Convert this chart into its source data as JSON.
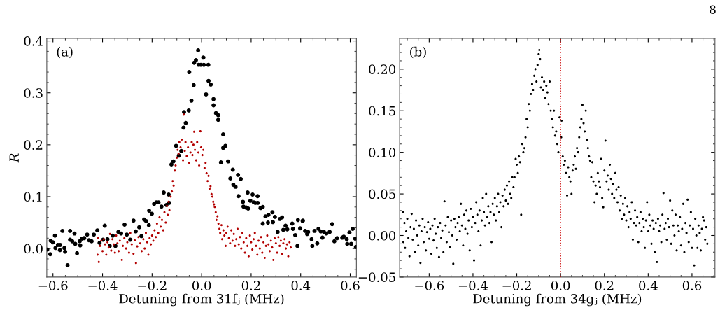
{
  "chart_data": [
    {
      "type": "scatter",
      "title": "(a)",
      "xlabel": "Detuning from 31fⱼ (MHz)",
      "ylabel": "R",
      "marker": "circle",
      "grid": false,
      "xlim": [
        -0.625,
        0.625
      ],
      "ylim": [
        -0.055,
        0.405
      ],
      "xticks": [
        {
          "value": -0.6,
          "label": "−0.6"
        },
        {
          "value": -0.4,
          "label": "−0.4"
        },
        {
          "value": -0.2,
          "label": "−0.2"
        },
        {
          "value": 0.0,
          "label": "0.0"
        },
        0.2,
        0.4,
        0.6
      ],
      "yticks": [
        {
          "value": 0.0,
          "label": "0.0"
        },
        0.1,
        0.2,
        0.3,
        0.4
      ],
      "annotations": [
        "8"
      ],
      "series": [
        {
          "color": "#000000",
          "x": [
            -0.623,
            -0.611,
            -0.609,
            -0.6,
            -0.592,
            -0.59,
            -0.58,
            -0.572,
            -0.571,
            -0.562,
            -0.554,
            -0.551,
            -0.541,
            -0.531,
            -0.531,
            -0.522,
            -0.513,
            -0.51,
            -0.503,
            -0.492,
            -0.49,
            -0.483,
            -0.474,
            -0.462,
            -0.455,
            -0.444,
            -0.435,
            -0.421,
            -0.412,
            -0.398,
            -0.391,
            -0.38,
            -0.371,
            -0.359,
            -0.348,
            -0.336,
            -0.325,
            -0.311,
            -0.302,
            -0.288,
            -0.275,
            -0.266,
            -0.252,
            -0.243,
            -0.232,
            -0.224,
            -0.213,
            -0.212,
            -0.201,
            -0.192,
            -0.183,
            -0.174,
            -0.162,
            -0.153,
            -0.142,
            -0.133,
            -0.131,
            -0.122,
            -0.114,
            -0.103,
            -0.092,
            -0.082,
            -0.073,
            -0.064,
            -0.071,
            -0.052,
            -0.041,
            -0.05,
            -0.032,
            -0.03,
            -0.023,
            -0.014,
            -0.012,
            -0.003,
            0.007,
            0.009,
            0.018,
            0.027,
            0.028,
            0.037,
            0.048,
            0.048,
            0.058,
            0.067,
            0.067,
            0.078,
            0.087,
            0.087,
            0.096,
            0.107,
            0.116,
            0.126,
            0.128,
            0.137,
            0.147,
            0.149,
            0.158,
            0.167,
            0.169,
            0.18,
            0.186,
            0.188,
            0.197,
            0.206,
            0.211,
            0.217,
            0.226,
            0.227,
            0.238,
            0.247,
            0.247,
            0.258,
            0.268,
            0.27,
            0.286,
            0.288,
            0.296,
            0.307,
            0.316,
            0.325,
            0.33,
            0.339,
            0.346,
            0.366,
            0.369,
            0.378,
            0.387,
            0.389,
            0.398,
            0.408,
            0.409,
            0.418,
            0.426,
            0.43,
            0.444,
            0.447,
            0.456,
            0.467,
            0.472,
            0.481,
            0.488,
            0.494,
            0.504,
            0.517,
            0.527,
            0.536,
            0.547,
            0.568,
            0.574,
            0.586,
            0.588,
            0.597,
            0.604,
            0.61,
            0.62,
            0.623
          ],
          "values": [
            -0.002,
            -0.011,
            0.015,
            0.012,
            0.025,
            0.001,
            0.007,
            -0.003,
            0.007,
            0.034,
            0.001,
            -0.006,
            -0.032,
            0.034,
            0.017,
            0.014,
            0.029,
            0.009,
            -0.009,
            0.014,
            0.006,
            0.019,
            0.02,
            0.027,
            0.016,
            0.014,
            0.027,
            0.035,
            0.011,
            0.017,
            0.044,
            0.018,
            0.005,
            0.025,
            0.005,
            0.032,
            0.029,
            0.046,
            0.027,
            0.017,
            0.054,
            0.033,
            0.041,
            0.024,
            0.056,
            0.053,
            0.045,
            0.073,
            0.067,
            0.086,
            0.089,
            0.089,
            0.081,
            0.108,
            0.084,
            0.104,
            0.088,
            0.162,
            0.168,
            0.198,
            0.179,
            0.188,
            0.233,
            0.242,
            0.263,
            0.266,
            0.285,
            0.34,
            0.315,
            0.358,
            0.363,
            0.382,
            0.354,
            0.354,
            0.368,
            0.354,
            0.297,
            0.354,
            0.323,
            0.316,
            0.288,
            0.276,
            0.261,
            0.257,
            0.248,
            0.166,
            0.22,
            0.194,
            0.198,
            0.168,
            0.135,
            0.152,
            0.123,
            0.119,
            0.142,
            0.101,
            0.134,
            0.09,
            0.081,
            0.079,
            0.108,
            0.077,
            0.092,
            0.104,
            0.089,
            0.088,
            0.101,
            0.088,
            0.078,
            0.08,
            0.048,
            0.062,
            0.05,
            0.065,
            0.07,
            0.051,
            0.061,
            0.032,
            0.057,
            0.06,
            0.036,
            0.044,
            0.037,
            0.048,
            0.038,
            0.026,
            0.005,
            0.055,
            0.039,
            0.053,
            0.054,
            0.034,
            0.028,
            0.032,
            0.018,
            0.005,
            0.034,
            0.01,
            0.038,
            0.033,
            0.021,
            0.032,
            0.029,
            0.032,
            0.047,
            0.014,
            0.02,
            0.021,
            0.023,
            0.018,
            0.009,
            0.031,
            0.009,
            0.038,
            0.019,
            0.003
          ]
        },
        {
          "color": "#b30000",
          "x": [
            -0.42,
            -0.418,
            -0.415,
            -0.41,
            -0.405,
            -0.4,
            -0.395,
            -0.39,
            -0.385,
            -0.38,
            -0.375,
            -0.37,
            -0.365,
            -0.36,
            -0.355,
            -0.35,
            -0.345,
            -0.34,
            -0.335,
            -0.33,
            -0.322,
            -0.318,
            -0.312,
            -0.305,
            -0.3,
            -0.293,
            -0.288,
            -0.282,
            -0.275,
            -0.27,
            -0.265,
            -0.26,
            -0.255,
            -0.248,
            -0.242,
            -0.235,
            -0.23,
            -0.225,
            -0.22,
            -0.215,
            -0.21,
            -0.205,
            -0.2,
            -0.195,
            -0.19,
            -0.185,
            -0.18,
            -0.175,
            -0.17,
            -0.165,
            -0.16,
            -0.155,
            -0.15,
            -0.145,
            -0.14,
            -0.137,
            -0.133,
            -0.13,
            -0.125,
            -0.12,
            -0.117,
            -0.113,
            -0.108,
            -0.105,
            -0.1,
            -0.097,
            -0.093,
            -0.09,
            -0.085,
            -0.08,
            -0.075,
            -0.072,
            -0.068,
            -0.065,
            -0.06,
            -0.055,
            -0.05,
            -0.045,
            -0.04,
            -0.037,
            -0.033,
            -0.03,
            -0.027,
            -0.022,
            -0.018,
            -0.013,
            -0.01,
            -0.005,
            -0.002,
            0.003,
            0.007,
            0.012,
            0.016,
            0.02,
            0.024,
            0.028,
            0.032,
            0.036,
            0.04,
            0.043,
            0.047,
            0.05,
            0.053,
            0.057,
            0.06,
            0.064,
            0.068,
            0.072,
            0.075,
            0.08,
            0.083,
            0.088,
            0.092,
            0.097,
            0.1,
            0.105,
            0.11,
            0.115,
            0.12,
            0.125,
            0.13,
            0.135,
            0.14,
            0.145,
            0.15,
            0.155,
            0.16,
            0.165,
            0.17,
            0.175,
            0.18,
            0.185,
            0.19,
            0.195,
            0.2,
            0.205,
            0.21,
            0.215,
            0.22,
            0.225,
            0.23,
            0.235,
            0.24,
            0.245,
            0.25,
            0.255,
            0.26,
            0.265,
            0.27,
            0.275,
            0.28,
            0.285,
            0.29,
            0.295,
            0.3,
            0.305,
            0.31,
            0.315,
            0.32,
            0.325,
            0.33,
            0.335,
            0.34,
            0.345,
            0.35,
            0.355,
            0.36
          ],
          "values": [
            -0.012,
            0.02,
            -0.026,
            0.005,
            0.015,
            -0.005,
            0.018,
            0.008,
            -0.012,
            0.012,
            0.002,
            0.028,
            -0.004,
            0.018,
            0.008,
            -0.008,
            0.025,
            0.01,
            -0.005,
            0.015,
            -0.022,
            0.005,
            0.02,
            0.0,
            0.012,
            -0.008,
            0.03,
            0.008,
            -0.01,
            0.016,
            -0.028,
            0.004,
            0.022,
            0.01,
            -0.005,
            0.018,
            0.0,
            0.03,
            0.012,
            -0.012,
            0.02,
            0.008,
            0.025,
            0.015,
            0.035,
            0.022,
            0.048,
            0.03,
            0.06,
            0.042,
            0.055,
            0.035,
            0.07,
            0.05,
            0.082,
            0.065,
            0.09,
            0.074,
            0.1,
            0.11,
            0.13,
            0.121,
            0.15,
            0.16,
            0.175,
            0.19,
            0.183,
            0.205,
            0.195,
            0.21,
            0.17,
            0.258,
            0.188,
            0.205,
            0.178,
            0.195,
            0.165,
            0.185,
            0.205,
            0.18,
            0.2,
            0.225,
            0.19,
            0.17,
            0.205,
            0.185,
            0.16,
            0.226,
            0.195,
            0.18,
            0.19,
            0.155,
            0.165,
            0.145,
            0.13,
            0.14,
            0.115,
            0.12,
            0.105,
            0.1,
            0.09,
            0.085,
            0.08,
            0.07,
            0.055,
            0.062,
            0.048,
            0.038,
            0.03,
            0.045,
            0.018,
            0.035,
            0.025,
            0.005,
            0.03,
            0.042,
            0.02,
            0.01,
            0.035,
            0.015,
            0.028,
            0.005,
            0.018,
            0.038,
            0.008,
            0.022,
            0.0,
            0.03,
            0.012,
            -0.008,
            0.02,
            0.005,
            -0.015,
            0.025,
            0.012,
            -0.002,
            0.018,
            0.03,
            0.005,
            -0.012,
            0.015,
            0.0,
            0.022,
            -0.008,
            0.012,
            -0.018,
            0.005,
            0.025,
            0.008,
            -0.005,
            0.015,
            0.002,
            -0.022,
            0.02,
            0.01,
            -0.008,
            0.022,
            0.005,
            0.015,
            -0.01,
            0.01,
            0.018,
            0.0,
            0.008,
            -0.015,
            0.012,
            0.002
          ]
        }
      ]
    },
    {
      "type": "scatter",
      "title": "(b)",
      "xlabel": "Detuning from 34gⱼ (MHz)",
      "marker": "circle",
      "grid": false,
      "xlim": [
        -0.735,
        0.705
      ],
      "ylim": [
        -0.05,
        0.237
      ],
      "xticks": [
        {
          "value": -0.6,
          "label": "−0.6"
        },
        {
          "value": -0.4,
          "label": "−0.4"
        },
        {
          "value": -0.2,
          "label": "−0.2"
        },
        {
          "value": 0.0,
          "label": "0.0"
        },
        0.2,
        0.4,
        0.6
      ],
      "yticks": [
        {
          "value": -0.05,
          "label": "−0.05"
        },
        {
          "value": 0.0,
          "label": "0.00"
        },
        0.05,
        {
          "value": 0.1,
          "label": "0.10"
        },
        0.15,
        {
          "value": 0.2,
          "label": "0.20"
        }
      ],
      "ref_lines": [
        {
          "axis": "x",
          "value": 0.0,
          "color": "#cc0000",
          "line_style": "dotted"
        }
      ],
      "series": [
        {
          "color": "#000000",
          "x": [
            -0.72,
            -0.718,
            -0.713,
            -0.71,
            -0.705,
            -0.7,
            -0.695,
            -0.69,
            -0.685,
            -0.68,
            -0.675,
            -0.67,
            -0.665,
            -0.66,
            -0.655,
            -0.65,
            -0.645,
            -0.64,
            -0.635,
            -0.63,
            -0.625,
            -0.62,
            -0.615,
            -0.61,
            -0.605,
            -0.6,
            -0.595,
            -0.59,
            -0.585,
            -0.58,
            -0.575,
            -0.57,
            -0.565,
            -0.56,
            -0.555,
            -0.55,
            -0.545,
            -0.54,
            -0.535,
            -0.53,
            -0.525,
            -0.52,
            -0.515,
            -0.51,
            -0.505,
            -0.5,
            -0.495,
            -0.49,
            -0.485,
            -0.48,
            -0.475,
            -0.47,
            -0.465,
            -0.46,
            -0.455,
            -0.45,
            -0.445,
            -0.44,
            -0.435,
            -0.43,
            -0.425,
            -0.42,
            -0.415,
            -0.41,
            -0.405,
            -0.4,
            -0.395,
            -0.39,
            -0.385,
            -0.38,
            -0.375,
            -0.37,
            -0.365,
            -0.36,
            -0.355,
            -0.35,
            -0.345,
            -0.34,
            -0.335,
            -0.33,
            -0.325,
            -0.32,
            -0.315,
            -0.31,
            -0.305,
            -0.3,
            -0.295,
            -0.29,
            -0.285,
            -0.28,
            -0.275,
            -0.27,
            -0.265,
            -0.26,
            -0.255,
            -0.25,
            -0.245,
            -0.24,
            -0.235,
            -0.23,
            -0.225,
            -0.22,
            -0.215,
            -0.21,
            -0.205,
            -0.2,
            -0.195,
            -0.19,
            -0.185,
            -0.18,
            -0.175,
            -0.17,
            -0.165,
            -0.16,
            -0.155,
            -0.15,
            -0.145,
            -0.14,
            -0.135,
            -0.13,
            -0.125,
            -0.12,
            -0.115,
            -0.11,
            -0.105,
            -0.1,
            -0.097,
            -0.093,
            -0.09,
            -0.085,
            -0.08,
            -0.075,
            -0.07,
            -0.065,
            -0.06,
            -0.055,
            -0.05,
            -0.045,
            -0.04,
            -0.035,
            -0.03,
            -0.025,
            -0.02,
            -0.015,
            -0.01,
            -0.005,
            0.003,
            0.005,
            0.01,
            0.015,
            0.02,
            0.025,
            0.03,
            0.035,
            0.04,
            0.045,
            0.05,
            0.055,
            0.06,
            0.065,
            0.07,
            0.075,
            0.08,
            0.085,
            0.09,
            0.095,
            0.1,
            0.105,
            0.11,
            0.115,
            0.12,
            0.125,
            0.13,
            0.135,
            0.14,
            0.145,
            0.15,
            0.155,
            0.16,
            0.165,
            0.17,
            0.175,
            0.18,
            0.185,
            0.19,
            0.195,
            0.2,
            0.205,
            0.21,
            0.215,
            0.22,
            0.225,
            0.23,
            0.235,
            0.24,
            0.245,
            0.25,
            0.255,
            0.26,
            0.265,
            0.27,
            0.275,
            0.28,
            0.285,
            0.29,
            0.295,
            0.3,
            0.305,
            0.31,
            0.315,
            0.32,
            0.325,
            0.33,
            0.335,
            0.34,
            0.345,
            0.35,
            0.355,
            0.36,
            0.365,
            0.37,
            0.375,
            0.38,
            0.385,
            0.39,
            0.395,
            0.4,
            0.405,
            0.41,
            0.415,
            0.42,
            0.425,
            0.43,
            0.435,
            0.44,
            0.445,
            0.45,
            0.455,
            0.46,
            0.465,
            0.47,
            0.475,
            0.48,
            0.485,
            0.49,
            0.495,
            0.5,
            0.505,
            0.51,
            0.515,
            0.52,
            0.525,
            0.53,
            0.535,
            0.54,
            0.545,
            0.55,
            0.555,
            0.56,
            0.565,
            0.57,
            0.575,
            0.58,
            0.585,
            0.59,
            0.595,
            0.6,
            0.605,
            0.61,
            0.615,
            0.62,
            0.625,
            0.63,
            0.635,
            0.64,
            0.645,
            0.65,
            0.655,
            0.66,
            0.665,
            0.67
          ],
          "values": [
            0.028,
            -0.008,
            0.015,
            -0.015,
            0.005,
            0.02,
            -0.003,
            -0.025,
            0.01,
            0.026,
            -0.005,
            0.008,
            -0.02,
            0.018,
            0.0,
            -0.012,
            0.012,
            -0.033,
            0.005,
            0.02,
            -0.008,
            0.01,
            -0.018,
            0.004,
            0.016,
            -0.004,
            0.008,
            -0.022,
            0.012,
            -0.006,
            0.02,
            0.002,
            -0.015,
            0.01,
            -0.026,
            0.015,
            -0.003,
            0.006,
            -0.02,
            0.041,
            0.012,
            -0.008,
            0.022,
            0.004,
            -0.014,
            0.018,
            0.0,
            -0.034,
            0.02,
            0.01,
            -0.005,
            0.015,
            0.022,
            0.005,
            0.038,
            0.012,
            -0.012,
            0.025,
            0.008,
            0.03,
            0.002,
            0.018,
            -0.018,
            0.032,
            0.01,
            0.022,
            -0.03,
            0.015,
            0.04,
            0.025,
            0.005,
            0.03,
            -0.012,
            0.018,
            0.045,
            0.028,
            0.012,
            0.05,
            0.022,
            0.035,
            0.015,
            0.028,
            -0.008,
            0.038,
            0.025,
            0.045,
            0.018,
            0.035,
            0.05,
            0.028,
            0.04,
            0.01,
            0.048,
            0.035,
            0.055,
            0.042,
            0.06,
            0.038,
            0.065,
            0.05,
            0.045,
            0.07,
            0.058,
            0.07,
            0.092,
            0.085,
            0.075,
            0.095,
            0.088,
            0.025,
            0.11,
            0.1,
            0.105,
            0.118,
            0.14,
            0.13,
            0.158,
            0.15,
            0.17,
            0.182,
            0.175,
            0.192,
            0.2,
            0.185,
            0.205,
            0.218,
            0.223,
            0.212,
            0.178,
            0.19,
            0.175,
            0.185,
            0.165,
            0.18,
            0.172,
            0.158,
            0.185,
            0.15,
            0.14,
            0.13,
            0.15,
            0.12,
            0.125,
            0.11,
            0.1,
            0.142,
            0.118,
            0.138,
            0.095,
            0.085,
            0.09,
            0.075,
            0.048,
            0.082,
            0.07,
            0.065,
            0.05,
            0.078,
            0.085,
            0.095,
            0.08,
            0.105,
            0.1,
            0.118,
            0.13,
            0.14,
            0.157,
            0.135,
            0.125,
            0.15,
            0.115,
            0.105,
            0.095,
            0.09,
            0.07,
            0.088,
            0.065,
            0.04,
            0.06,
            0.05,
            0.075,
            0.065,
            0.058,
            0.092,
            0.045,
            0.034,
            0.078,
            0.114,
            0.065,
            0.072,
            0.055,
            0.085,
            0.068,
            0.05,
            0.062,
            0.045,
            0.075,
            0.055,
            0.04,
            0.058,
            0.03,
            0.048,
            0.02,
            0.038,
            0.025,
            0.045,
            0.018,
            0.035,
            0.01,
            0.028,
            0.02,
            0.04,
            -0.005,
            0.015,
            0.03,
            0.012,
            0.022,
            -0.008,
            0.015,
            0.028,
            0.005,
            0.02,
            0.01,
            -0.015,
            0.018,
            0.04,
            0.005,
            0.025,
            0.012,
            -0.01,
            0.018,
            0.008,
            -0.02,
            0.015,
            -0.032,
            0.02,
            0.005,
            0.012,
            -0.008,
            0.025,
            0.051,
            0.008,
            0.015,
            -0.005,
            0.02,
            0.01,
            0.042,
            -0.01,
            0.03,
            0.012,
            0.0,
            0.025,
            -0.018,
            0.012,
            0.005,
            0.022,
            -0.012,
            0.008,
            0.038,
            -0.02,
            0.015,
            0.003,
            0.043,
            -0.008,
            0.012,
            0.028,
            -0.015,
            0.008,
            -0.036,
            0.02,
            0.0,
            -0.015,
            0.012,
            0.003,
            -0.018,
            0.008,
            0.022,
            0.018,
            -0.005,
            0.01,
            -0.01
          ]
        }
      ]
    }
  ]
}
